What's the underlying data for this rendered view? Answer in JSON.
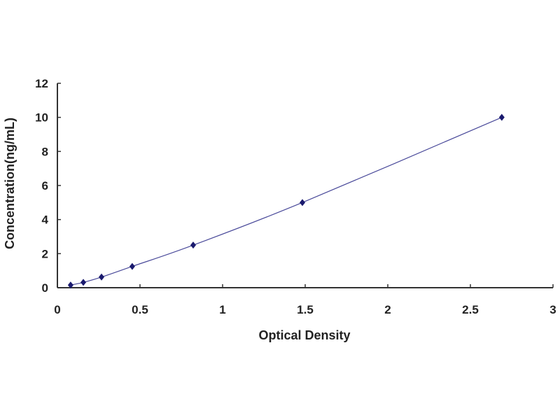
{
  "chart_data": {
    "type": "scatter",
    "title": "",
    "xlabel": "Optical Density",
    "ylabel": "Concentration(ng/mL)",
    "xlim": [
      0,
      3
    ],
    "ylim": [
      0,
      12
    ],
    "xticks": [
      "0",
      "0.5",
      "1",
      "1.5",
      "2",
      "2.5",
      "3"
    ],
    "yticks": [
      "0",
      "2",
      "4",
      "6",
      "8",
      "10",
      "12"
    ],
    "grid": false,
    "legend": "none",
    "series": [
      {
        "x": [
          0.08,
          0.157,
          0.267,
          0.453,
          0.822,
          1.483,
          2.69
        ],
        "y": [
          0.156,
          0.312,
          0.625,
          1.25,
          2.5,
          5,
          10
        ],
        "marker": "diamond",
        "trendline": "smooth curve",
        "color": "#1a1a6e",
        "line_color": "#4a4a9a"
      }
    ]
  }
}
